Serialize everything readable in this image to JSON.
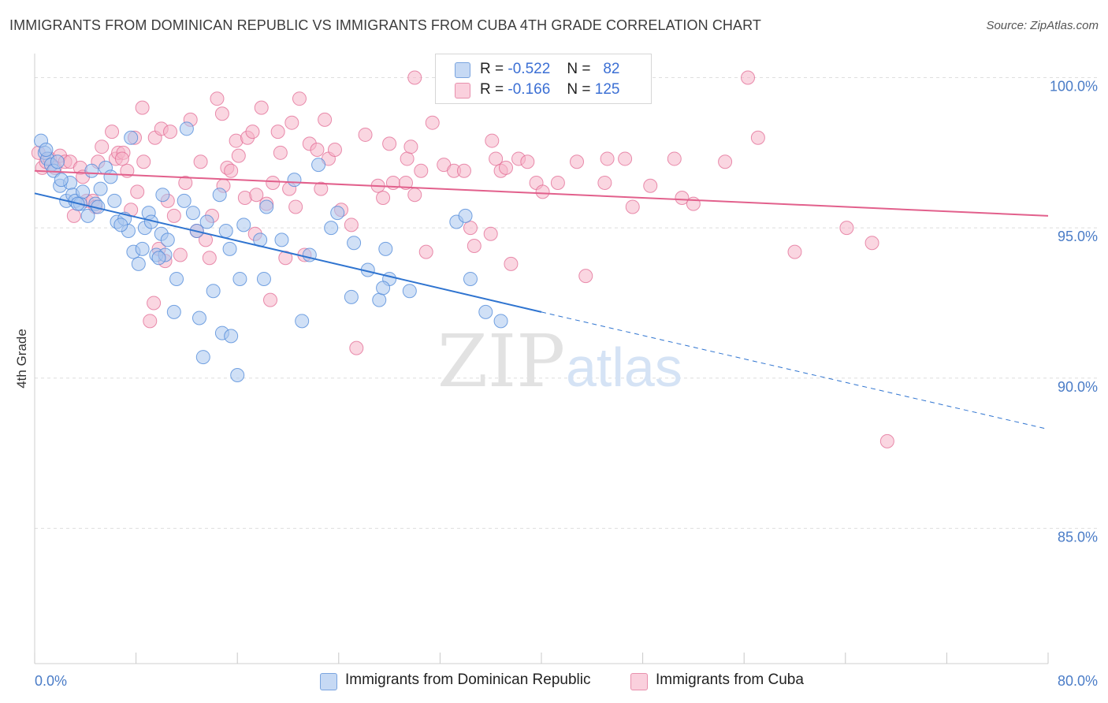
{
  "header": {
    "title": "IMMIGRANTS FROM DOMINICAN REPUBLIC VS IMMIGRANTS FROM CUBA 4TH GRADE CORRELATION CHART",
    "source": "Source: ZipAtlas.com"
  },
  "watermark": {
    "zip": "ZIP",
    "atlas": "atlas"
  },
  "legend": {
    "series": [
      {
        "r_label": "R =",
        "r_value": "-0.522",
        "n_label": "N =",
        "n_value": "82",
        "color": "#a9c6ef"
      },
      {
        "r_label": "R =",
        "r_value": "-0.166",
        "n_label": "N =",
        "n_value": "125",
        "color": "#f6b5c9"
      }
    ]
  },
  "bottom_legend": [
    {
      "label": "Immigrants from Dominican Republic",
      "color": "#a9c6ef"
    },
    {
      "label": "Immigrants from Cuba",
      "color": "#f6b5c9"
    }
  ],
  "chart_data": {
    "type": "scatter",
    "title": "IMMIGRANTS FROM DOMINICAN REPUBLIC VS IMMIGRANTS FROM CUBA 4TH GRADE CORRELATION CHART",
    "xlabel": "",
    "ylabel": "4th Grade",
    "xlim": [
      0,
      80
    ],
    "ylim": [
      80.5,
      100.8
    ],
    "x_tick_labels": [
      "0.0%",
      "80.0%"
    ],
    "y_ticks": [
      85,
      90,
      95,
      100
    ],
    "y_tick_labels": [
      "85.0%",
      "90.0%",
      "95.0%",
      "100.0%"
    ],
    "grid": true,
    "legend_position": "top-center",
    "series": [
      {
        "name": "Immigrants from Dominican Republic",
        "color": "#4a86d8",
        "fill": "#a9c6ef",
        "trend": {
          "x0": 0,
          "y0": 96.15,
          "x1": 40,
          "y1": 92.2,
          "dashed_to_x": 80,
          "dashed_to_y": 88.3
        },
        "points": [
          [
            0.5,
            97.9
          ],
          [
            0.8,
            97.5
          ],
          [
            1.0,
            97.3
          ],
          [
            1.3,
            97.1
          ],
          [
            1.5,
            96.9
          ],
          [
            2.0,
            96.4
          ],
          [
            2.8,
            96.5
          ],
          [
            2.5,
            95.9
          ],
          [
            3.0,
            96.1
          ],
          [
            3.2,
            95.9
          ],
          [
            3.6,
            95.8
          ],
          [
            3.8,
            96.2
          ],
          [
            4.5,
            96.9
          ],
          [
            4.2,
            95.4
          ],
          [
            4.8,
            95.8
          ],
          [
            5.2,
            96.3
          ],
          [
            5.6,
            97.0
          ],
          [
            6.0,
            96.7
          ],
          [
            6.3,
            95.9
          ],
          [
            6.5,
            95.2
          ],
          [
            7.1,
            95.3
          ],
          [
            7.6,
            98.0
          ],
          [
            7.4,
            94.9
          ],
          [
            7.8,
            94.2
          ],
          [
            8.2,
            93.8
          ],
          [
            8.5,
            94.3
          ],
          [
            8.7,
            95.0
          ],
          [
            9.0,
            95.5
          ],
          [
            9.2,
            95.2
          ],
          [
            9.6,
            94.1
          ],
          [
            10.0,
            94.8
          ],
          [
            10.3,
            94.1
          ],
          [
            10.5,
            94.6
          ],
          [
            10.1,
            96.1
          ],
          [
            11.2,
            93.3
          ],
          [
            11.0,
            92.2
          ],
          [
            12.0,
            98.3
          ],
          [
            11.8,
            95.9
          ],
          [
            12.5,
            95.5
          ],
          [
            12.8,
            94.9
          ],
          [
            13.0,
            92.0
          ],
          [
            13.6,
            95.2
          ],
          [
            14.1,
            92.9
          ],
          [
            13.3,
            90.7
          ],
          [
            14.6,
            96.1
          ],
          [
            15.1,
            94.9
          ],
          [
            14.8,
            91.5
          ],
          [
            15.5,
            91.4
          ],
          [
            15.4,
            94.3
          ],
          [
            16.0,
            90.1
          ],
          [
            16.2,
            93.3
          ],
          [
            16.5,
            95.1
          ],
          [
            17.8,
            94.6
          ],
          [
            18.1,
            93.3
          ],
          [
            18.3,
            95.7
          ],
          [
            19.5,
            94.6
          ],
          [
            20.5,
            96.6
          ],
          [
            21.1,
            91.9
          ],
          [
            21.7,
            94.1
          ],
          [
            22.4,
            97.1
          ],
          [
            23.4,
            95.0
          ],
          [
            23.9,
            95.5
          ],
          [
            25.0,
            92.7
          ],
          [
            25.2,
            94.5
          ],
          [
            26.3,
            93.6
          ],
          [
            27.2,
            92.6
          ],
          [
            27.7,
            94.3
          ],
          [
            28.0,
            93.3
          ],
          [
            27.5,
            93.0
          ],
          [
            29.6,
            92.9
          ],
          [
            33.3,
            95.2
          ],
          [
            34.0,
            95.4
          ],
          [
            34.4,
            93.3
          ],
          [
            35.6,
            92.2
          ],
          [
            36.8,
            91.9
          ],
          [
            2.1,
            96.6
          ],
          [
            5.0,
            95.7
          ],
          [
            9.8,
            94.0
          ],
          [
            1.8,
            97.2
          ],
          [
            0.9,
            97.6
          ],
          [
            3.4,
            95.8
          ],
          [
            6.8,
            95.1
          ]
        ]
      },
      {
        "name": "Immigrants from Cuba",
        "color": "#e26a93",
        "fill": "#f6b5c9",
        "trend": {
          "x0": 0,
          "y0": 96.9,
          "x1": 80,
          "y1": 95.4
        },
        "points": [
          [
            0.3,
            97.5
          ],
          [
            0.6,
            97.0
          ],
          [
            0.9,
            97.2
          ],
          [
            1.2,
            97.3
          ],
          [
            1.6,
            97.0
          ],
          [
            2.0,
            97.4
          ],
          [
            2.4,
            97.2
          ],
          [
            2.8,
            97.2
          ],
          [
            3.1,
            95.4
          ],
          [
            3.6,
            97.0
          ],
          [
            3.8,
            96.7
          ],
          [
            4.1,
            95.9
          ],
          [
            4.6,
            95.9
          ],
          [
            4.8,
            95.7
          ],
          [
            5.0,
            97.2
          ],
          [
            5.3,
            97.7
          ],
          [
            6.1,
            98.2
          ],
          [
            6.4,
            97.3
          ],
          [
            6.6,
            97.5
          ],
          [
            7.0,
            97.5
          ],
          [
            7.3,
            96.9
          ],
          [
            7.6,
            95.6
          ],
          [
            7.9,
            98.0
          ],
          [
            8.1,
            96.2
          ],
          [
            8.5,
            99.0
          ],
          [
            8.6,
            97.2
          ],
          [
            9.1,
            91.9
          ],
          [
            9.4,
            92.5
          ],
          [
            9.5,
            98.0
          ],
          [
            9.8,
            94.3
          ],
          [
            10.0,
            98.3
          ],
          [
            10.3,
            93.9
          ],
          [
            10.5,
            95.9
          ],
          [
            10.7,
            98.2
          ],
          [
            11.0,
            95.4
          ],
          [
            11.5,
            94.1
          ],
          [
            11.9,
            96.5
          ],
          [
            12.3,
            98.6
          ],
          [
            12.8,
            94.9
          ],
          [
            13.1,
            97.2
          ],
          [
            13.5,
            94.6
          ],
          [
            13.8,
            94.0
          ],
          [
            14.0,
            95.4
          ],
          [
            14.4,
            99.3
          ],
          [
            14.9,
            96.4
          ],
          [
            15.2,
            97.0
          ],
          [
            15.5,
            96.9
          ],
          [
            15.9,
            97.9
          ],
          [
            16.1,
            97.4
          ],
          [
            16.6,
            96.0
          ],
          [
            16.8,
            98.0
          ],
          [
            17.2,
            98.2
          ],
          [
            17.5,
            96.1
          ],
          [
            17.9,
            99.0
          ],
          [
            17.4,
            94.8
          ],
          [
            18.3,
            95.8
          ],
          [
            18.6,
            92.6
          ],
          [
            18.8,
            96.5
          ],
          [
            19.2,
            98.2
          ],
          [
            19.4,
            97.5
          ],
          [
            19.8,
            94.0
          ],
          [
            20.1,
            96.3
          ],
          [
            20.3,
            98.5
          ],
          [
            20.9,
            99.3
          ],
          [
            21.3,
            94.1
          ],
          [
            21.7,
            97.8
          ],
          [
            22.3,
            97.6
          ],
          [
            22.6,
            96.3
          ],
          [
            23.2,
            97.3
          ],
          [
            23.7,
            97.6
          ],
          [
            24.2,
            95.6
          ],
          [
            25.0,
            95.1
          ],
          [
            25.4,
            91.0
          ],
          [
            26.1,
            98.1
          ],
          [
            27.1,
            96.4
          ],
          [
            27.5,
            96.0
          ],
          [
            28.0,
            97.8
          ],
          [
            28.3,
            96.5
          ],
          [
            29.3,
            96.5
          ],
          [
            29.4,
            97.3
          ],
          [
            29.7,
            97.7
          ],
          [
            30.0,
            96.1
          ],
          [
            30.5,
            96.9
          ],
          [
            30.9,
            94.2
          ],
          [
            31.4,
            98.5
          ],
          [
            32.3,
            97.1
          ],
          [
            33.1,
            96.9
          ],
          [
            33.9,
            96.9
          ],
          [
            34.4,
            95.0
          ],
          [
            34.7,
            94.4
          ],
          [
            36.1,
            97.9
          ],
          [
            36.4,
            97.3
          ],
          [
            36.8,
            96.9
          ],
          [
            37.2,
            97.0
          ],
          [
            37.6,
            93.8
          ],
          [
            38.2,
            97.3
          ],
          [
            38.9,
            97.2
          ],
          [
            39.6,
            96.5
          ],
          [
            40.1,
            96.2
          ],
          [
            41.3,
            96.5
          ],
          [
            42.8,
            97.2
          ],
          [
            43.5,
            93.4
          ],
          [
            45.0,
            96.5
          ],
          [
            45.2,
            97.3
          ],
          [
            46.6,
            97.3
          ],
          [
            47.2,
            95.7
          ],
          [
            48.6,
            96.4
          ],
          [
            50.5,
            97.3
          ],
          [
            51.1,
            96.0
          ],
          [
            52.0,
            95.8
          ],
          [
            54.5,
            97.2
          ],
          [
            56.3,
            100.0
          ],
          [
            57.1,
            98.0
          ],
          [
            60.0,
            94.2
          ],
          [
            64.1,
            95.0
          ],
          [
            66.1,
            94.5
          ],
          [
            67.3,
            87.9
          ],
          [
            30.0,
            100.0
          ],
          [
            22.9,
            98.6
          ],
          [
            20.6,
            95.7
          ],
          [
            36.0,
            94.8
          ],
          [
            6.9,
            97.3
          ],
          [
            14.8,
            98.8
          ]
        ]
      }
    ]
  }
}
